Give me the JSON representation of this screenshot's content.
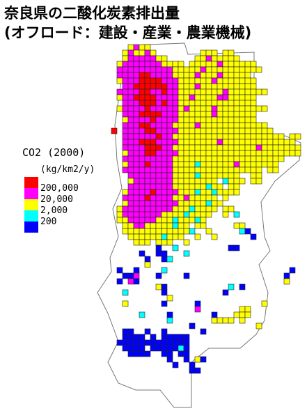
{
  "title": [
    "奈良県の二酸化炭素排出量",
    "(オフロード：建設・産業・農業機械)"
  ],
  "legend": {
    "title": "CO2 (2000)",
    "unit": "(kg/km2/y)",
    "colors": [
      "#0000ff",
      "#00ffff",
      "#ffff00",
      "#ff00ff",
      "#ff0000"
    ],
    "thresholds": [
      200,
      {
        "value": 2000,
        "label": "2,000"
      },
      {
        "value": 20000,
        "label": "20,000"
      },
      {
        "value": 200000,
        "label": "200,000"
      }
    ]
  },
  "map": {
    "rows": [
      "...2322...........................",
      "..232232........222.22............",
      "..23333322.....22322222...........",
      ".233333332222.222223222222........",
      ".33333333332222232222222222.......",
      ".333344333322223222322222.........",
      ".2333444433322222232222222........",
      "..334444443322232222222222........",
      ".333344334332222222232222222......",
      ".2334444333322322223322222........",
      "..333444343322222222222222........",
      ".233334333332322223222222222......",
      "..333444433322222232222222........",
      "..233334333322222222222222........",
      "..33344333322223222222222222......",
      "4.333344333322222222222222222.....",
      "..33333343322222222222222222222.22",
      "..3334443333222222232222222222222.",
      "..33334443322222222222222232222222",
      "..23334433332222222222222222222222",
      "..33333333322222222222222222222...",
      "..2333433332222122222232222222....",
      "..3333333332222222222222222.22....",
      "...33333333222212222222..22.......",
      "...2333333322222222.1222.22.......",
      "...33333333222222122.22...........",
      "..233334333322212212222...........",
      "..33334333322322222.2.............",
      "..233333333322222122..............",
      ".233333333322212222.22............",
      ".23333333222212222..2.1...........",
      ".2233333222122212.................",
      "..223322222122.22.....22..........",
      "..2222222222221..2.....10.........",
      "...2222221222..2..2......0........",
      "....222.222..2....................",
      "........0..1.........00...........",
      ".....0..00...1....................",
      "......0..01.......................",
      "......2...........................",
      ".0..0....1......................0.",
      "..003...0....0.................0..",
      ".0.30..........................2..",
      "........20...........1.0..........",
      "..1......0..........0.............",
      "..........2.......................",
      "..2......0.....0...........2......",
      "...............3.......22.........",
      ".....1....0.......0...222.........",
      "..........1.......2222.2..........",
      "..............0...........2.......",
      "..00..0..0......0.................",
      "..0000.0.00000....................",
      ".0000000000000....................",
      "..0000.0000010....................",
      "...0000..00.00....................",
      "..........0..0.20.................",
      "...........0..0...................",
      "..............00.................."
    ]
  }
}
